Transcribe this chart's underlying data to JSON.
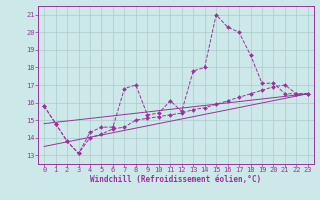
{
  "background_color": "#cce8e8",
  "grid_color": "#aacccc",
  "line_color": "#993399",
  "marker_style": "D",
  "marker_size": 2,
  "xlabel": "Windchill (Refroidissement éolien,°C)",
  "ylabel_ticks": [
    13,
    14,
    15,
    16,
    17,
    18,
    19,
    20,
    21
  ],
  "xlim": [
    -0.5,
    23.5
  ],
  "ylim": [
    12.5,
    21.5
  ],
  "xticks": [
    0,
    1,
    2,
    3,
    4,
    5,
    6,
    7,
    8,
    9,
    10,
    11,
    12,
    13,
    14,
    15,
    16,
    17,
    18,
    19,
    20,
    21,
    22,
    23
  ],
  "series": [
    {
      "x": [
        0,
        1,
        2,
        3,
        4,
        5,
        6,
        7,
        8,
        9,
        10,
        11,
        12,
        13,
        14,
        15,
        16,
        17,
        18,
        19,
        20,
        21,
        22,
        23
      ],
      "y": [
        15.8,
        14.8,
        13.8,
        13.1,
        14.3,
        14.6,
        14.6,
        16.8,
        17.0,
        15.3,
        15.4,
        16.1,
        15.5,
        17.8,
        18.0,
        21.0,
        20.3,
        20.0,
        18.7,
        17.1,
        17.1,
        16.5,
        16.5,
        16.5
      ],
      "markers": true
    },
    {
      "x": [
        0,
        1,
        2,
        3,
        4,
        5,
        6,
        7,
        8,
        9,
        10,
        11,
        12,
        13,
        14,
        15,
        16,
        17,
        18,
        19,
        20,
        21,
        22,
        23
      ],
      "y": [
        15.8,
        14.8,
        13.8,
        13.1,
        14.0,
        14.2,
        14.5,
        14.6,
        15.0,
        15.1,
        15.2,
        15.3,
        15.4,
        15.6,
        15.7,
        15.9,
        16.1,
        16.3,
        16.5,
        16.7,
        16.9,
        17.0,
        16.5,
        16.5
      ],
      "markers": true
    },
    {
      "x": [
        0,
        23
      ],
      "y": [
        13.5,
        16.5
      ],
      "markers": false
    },
    {
      "x": [
        0,
        23
      ],
      "y": [
        14.8,
        16.5
      ],
      "markers": false
    }
  ]
}
